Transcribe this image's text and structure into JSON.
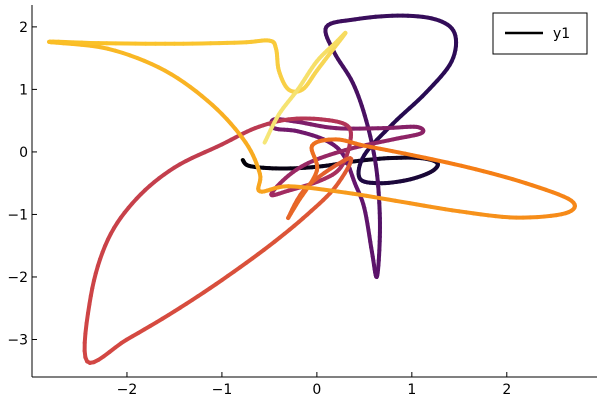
{
  "chart_data": {
    "type": "line",
    "title": "",
    "xlabel": "",
    "ylabel": "",
    "xlim": [
      -3.0,
      2.95
    ],
    "ylim": [
      -3.6,
      2.35
    ],
    "xticks": [
      -2,
      -1,
      0,
      1,
      2
    ],
    "xtick_labels": [
      "−2",
      "−1",
      "0",
      "1",
      "2"
    ],
    "yticks": [
      -3,
      -2,
      -1,
      0,
      1,
      2
    ],
    "ytick_labels": [
      "−3",
      "−2",
      "−1",
      "0",
      "1",
      "2"
    ],
    "grid": false,
    "legend_position": "top-right",
    "colormap": "inferno",
    "line_color_legend": "#000000",
    "series": [
      {
        "name": "y1",
        "points": [
          [
            -0.78,
            -0.13
          ],
          [
            -0.72,
            -0.22
          ],
          [
            -0.5,
            -0.26
          ],
          [
            -0.2,
            -0.26
          ],
          [
            0.1,
            -0.22
          ],
          [
            0.4,
            -0.15
          ],
          [
            0.75,
            -0.1
          ],
          [
            1.1,
            -0.1
          ],
          [
            1.27,
            -0.18
          ],
          [
            1.2,
            -0.32
          ],
          [
            0.95,
            -0.45
          ],
          [
            0.65,
            -0.5
          ],
          [
            0.45,
            -0.42
          ],
          [
            0.5,
            -0.05
          ],
          [
            0.8,
            0.45
          ],
          [
            1.15,
            0.95
          ],
          [
            1.42,
            1.45
          ],
          [
            1.45,
            1.9
          ],
          [
            1.25,
            2.12
          ],
          [
            0.85,
            2.18
          ],
          [
            0.4,
            2.12
          ],
          [
            0.1,
            2.0
          ],
          [
            0.18,
            1.6
          ],
          [
            0.38,
            1.1
          ],
          [
            0.52,
            0.5
          ],
          [
            0.62,
            -0.2
          ],
          [
            0.66,
            -0.9
          ],
          [
            0.66,
            -1.5
          ],
          [
            0.63,
            -2.0
          ],
          [
            0.58,
            -1.6
          ],
          [
            0.5,
            -0.9
          ],
          [
            0.4,
            -0.5
          ],
          [
            0.28,
            -0.05
          ],
          [
            0.1,
            0.18
          ],
          [
            -0.2,
            0.33
          ],
          [
            -0.45,
            0.38
          ],
          [
            -0.45,
            0.52
          ],
          [
            -0.2,
            0.48
          ],
          [
            0.2,
            0.38
          ],
          [
            0.7,
            0.38
          ],
          [
            1.05,
            0.4
          ],
          [
            1.1,
            0.3
          ],
          [
            0.8,
            0.2
          ],
          [
            0.35,
            0.05
          ],
          [
            -0.05,
            -0.15
          ],
          [
            -0.3,
            -0.38
          ],
          [
            -0.48,
            -0.68
          ],
          [
            -0.3,
            -0.62
          ],
          [
            0.05,
            -0.45
          ],
          [
            0.25,
            -0.25
          ],
          [
            0.35,
            0.15
          ],
          [
            0.32,
            0.42
          ],
          [
            0.05,
            0.52
          ],
          [
            -0.3,
            0.52
          ],
          [
            -0.65,
            0.38
          ],
          [
            -1.0,
            0.12
          ],
          [
            -1.5,
            -0.25
          ],
          [
            -1.9,
            -0.75
          ],
          [
            -2.2,
            -1.4
          ],
          [
            -2.38,
            -2.3
          ],
          [
            -2.42,
            -3.35
          ],
          [
            -2.0,
            -3.0
          ],
          [
            -1.5,
            -2.55
          ],
          [
            -1.0,
            -2.05
          ],
          [
            -0.5,
            -1.5
          ],
          [
            -0.1,
            -1.0
          ],
          [
            0.2,
            -0.55
          ],
          [
            0.35,
            -0.1
          ],
          [
            -0.1,
            -0.55
          ],
          [
            -0.3,
            -1.05
          ],
          [
            -0.2,
            -0.8
          ],
          [
            0.0,
            -0.3
          ],
          [
            -0.05,
            0.1
          ],
          [
            0.2,
            0.2
          ],
          [
            0.5,
            0.1
          ],
          [
            1.0,
            -0.05
          ],
          [
            1.6,
            -0.25
          ],
          [
            2.2,
            -0.5
          ],
          [
            2.68,
            -0.78
          ],
          [
            2.62,
            -0.98
          ],
          [
            2.1,
            -1.05
          ],
          [
            1.5,
            -0.95
          ],
          [
            0.9,
            -0.8
          ],
          [
            0.3,
            -0.65
          ],
          [
            -0.3,
            -0.55
          ],
          [
            -0.6,
            -0.63
          ],
          [
            -0.6,
            -0.35
          ],
          [
            -0.75,
            0.15
          ],
          [
            -1.1,
            0.75
          ],
          [
            -1.6,
            1.3
          ],
          [
            -2.2,
            1.65
          ],
          [
            -2.82,
            1.76
          ],
          [
            -2.3,
            1.74
          ],
          [
            -1.5,
            1.73
          ],
          [
            -0.8,
            1.75
          ],
          [
            -0.5,
            1.78
          ],
          [
            -0.43,
            1.65
          ],
          [
            -0.4,
            1.3
          ],
          [
            -0.3,
            1.0
          ],
          [
            -0.15,
            1.0
          ],
          [
            0.0,
            1.3
          ],
          [
            0.15,
            1.6
          ],
          [
            0.3,
            1.9
          ],
          [
            0.2,
            1.75
          ],
          [
            0.0,
            1.45
          ],
          [
            -0.2,
            1.0
          ],
          [
            -0.4,
            0.6
          ],
          [
            -0.55,
            0.15
          ]
        ]
      }
    ]
  }
}
